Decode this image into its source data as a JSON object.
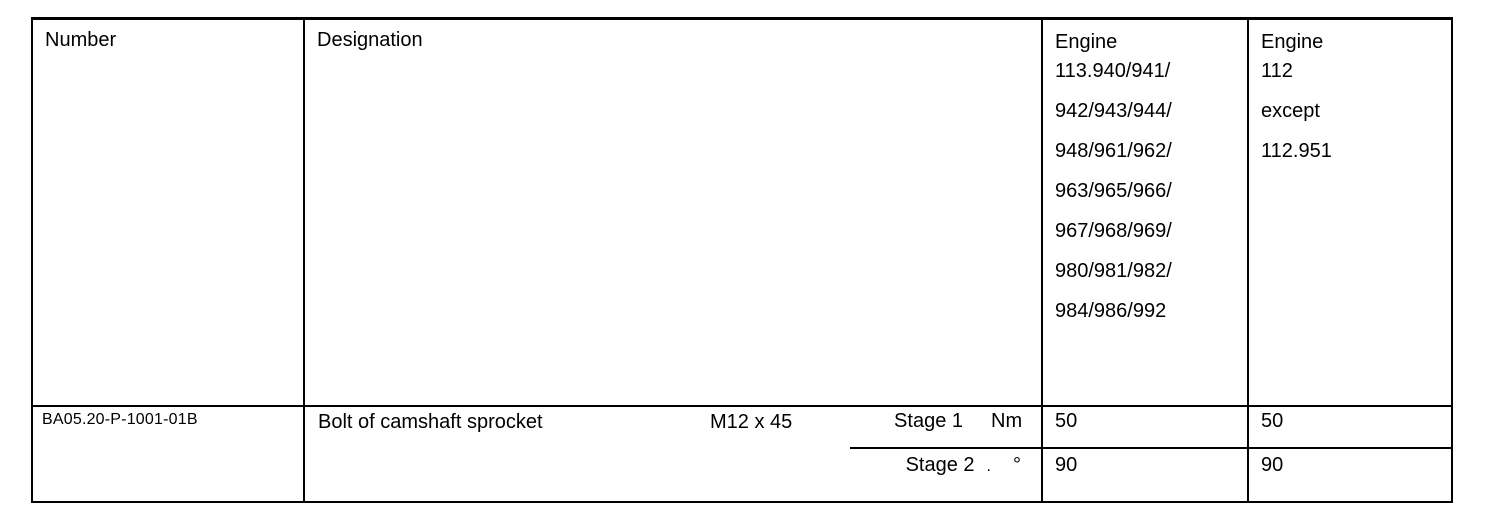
{
  "page": {
    "background": "#ffffff"
  },
  "table": {
    "border_color": "#000000",
    "text_color": "#000000",
    "headers": {
      "number": "Number",
      "designation": "Designation",
      "engine113": {
        "lines": [
          "Engine",
          "113.940/941/",
          "942/943/944/",
          "948/961/962/",
          "963/965/966/",
          "967/968/969/",
          "980/981/982/",
          "984/986/992"
        ]
      },
      "engine112": {
        "lines": [
          "Engine",
          "112",
          "except",
          "112.951"
        ]
      }
    },
    "row": {
      "number": "BA05.20-P-1001-01B",
      "designation": "Bolt of camshaft sprocket",
      "thread_size": "M12 x 45",
      "stages": [
        {
          "label": "Stage 1",
          "unit": "Nm",
          "value_engine113": "50",
          "value_engine112": "50"
        },
        {
          "label": "Stage 2",
          "dot": ".",
          "unit": "°",
          "value_engine113": "90",
          "value_engine112": "90"
        }
      ]
    }
  }
}
